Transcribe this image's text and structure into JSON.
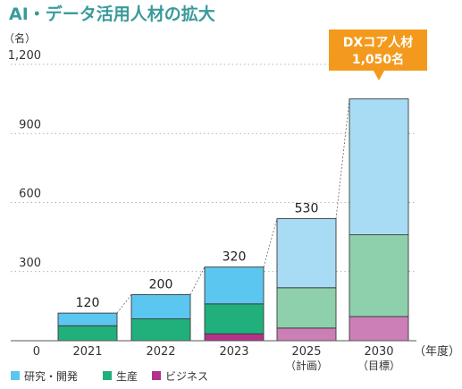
{
  "chart_data": {
    "type": "bar",
    "stacked": true,
    "title": "AI・データ活用人材の拡大",
    "ylabel": "（名）",
    "xlabel": "（年度）",
    "ylim": [
      0,
      1200
    ],
    "yticks": [
      0,
      300,
      600,
      900,
      1200
    ],
    "ytick_labels": [
      "0",
      "300",
      "600",
      "900",
      "1,200"
    ],
    "categories": [
      "2021",
      "2022",
      "2023",
      "2025",
      "2030"
    ],
    "category_notes": [
      "",
      "",
      "",
      "（計画）",
      "（目標）"
    ],
    "totals": [
      120,
      200,
      320,
      530,
      1050
    ],
    "total_labels": [
      "120",
      "200",
      "320",
      "530",
      ""
    ],
    "series": [
      {
        "name": "ビジネス",
        "values": [
          0,
          0,
          30,
          55,
          105
        ],
        "color": "#b3338c",
        "future_color": "#cc7fb6"
      },
      {
        "name": "生産",
        "values": [
          65,
          95,
          130,
          175,
          355
        ],
        "color": "#21b07c",
        "future_color": "#8fd0ac"
      },
      {
        "name": "研究・開発",
        "values": [
          55,
          105,
          160,
          300,
          590
        ],
        "color": "#5bc6ef",
        "future_color": "#a8dcf5"
      }
    ],
    "future_start_index": 3,
    "legend": {
      "position": "bottom-left",
      "order": [
        "研究・開発",
        "生産",
        "ビジネス"
      ]
    },
    "annotation": {
      "line1": "DXコア人材",
      "line2": "1,050名",
      "color": "#f39a1e",
      "target_index": 4
    },
    "grid": "dotted-horizontal"
  }
}
